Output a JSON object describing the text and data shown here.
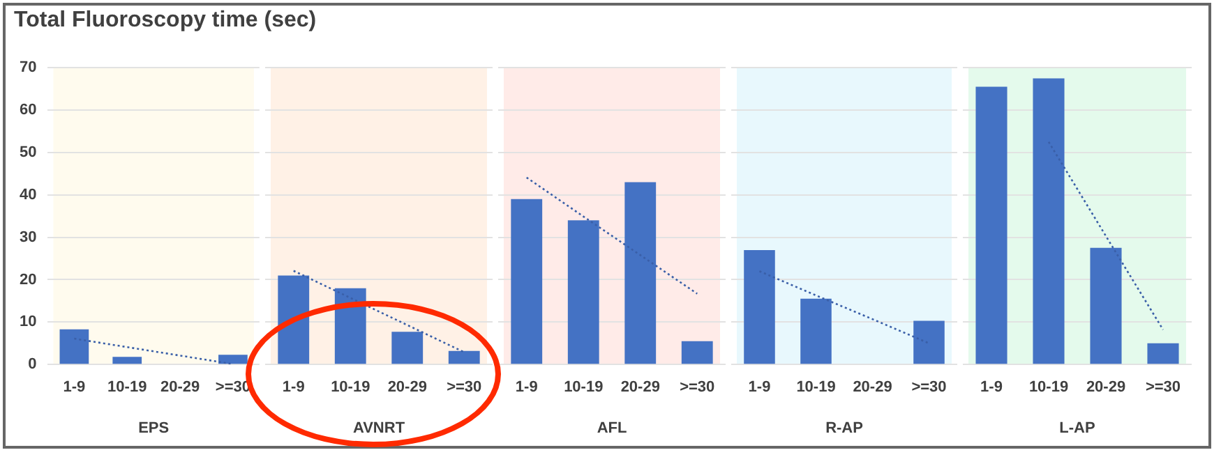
{
  "chart_data": [
    {
      "type": "bar",
      "title": "Total Fluoroscopy time (sec)",
      "xlabel": "EPS",
      "categories": [
        "1-9",
        "10-19",
        "20-29",
        ">=30"
      ],
      "ylim": [
        0,
        70
      ],
      "yticks": [
        0,
        10,
        20,
        30,
        40,
        50,
        60,
        70
      ],
      "grid": "y",
      "legend": false,
      "series": [
        {
          "color": "#4472c4",
          "values": [
            8.3,
            1.8,
            0,
            2.3
          ]
        },
        {
          "type": "line",
          "color": "#3a5fa8",
          "line_style": "dotted",
          "marker": "none",
          "values": [
            6.1,
            4.1,
            2.1,
            0.1
          ]
        }
      ]
    },
    {
      "type": "bar",
      "xlabel": "AVNRT",
      "categories": [
        "1-9",
        "10-19",
        "20-29",
        ">=30"
      ],
      "ylim": [
        0,
        70
      ],
      "yticks": [
        0,
        10,
        20,
        30,
        40,
        50,
        60,
        70
      ],
      "grid": "y",
      "legend": false,
      "tick_labels": "x",
      "series": [
        {
          "color": "#4472c4",
          "values": [
            21,
            18,
            7.7,
            3.2
          ]
        },
        {
          "type": "line",
          "color": "#3a5fa8",
          "line_style": "dotted",
          "marker": "none",
          "values": [
            22.1,
            15.7,
            9.3,
            2.9
          ]
        }
      ]
    },
    {
      "type": "bar",
      "xlabel": "AFL",
      "categories": [
        "1-9",
        "10-19",
        "20-29",
        ">=30"
      ],
      "ylim": [
        0,
        70
      ],
      "yticks": [
        0,
        10,
        20,
        30,
        40,
        50,
        60,
        70
      ],
      "grid": "y",
      "legend": false,
      "tick_labels": "x",
      "series": [
        {
          "color": "#4472c4",
          "values": [
            39,
            34,
            43,
            5.5
          ]
        },
        {
          "type": "line",
          "color": "#3a5fa8",
          "line_style": "dotted",
          "marker": "none",
          "values": [
            44.1,
            34.9,
            25.8,
            16.7
          ]
        }
      ]
    },
    {
      "type": "bar",
      "xlabel": "R-AP",
      "categories": [
        "1-9",
        "10-19",
        "20-29",
        ">=30"
      ],
      "ylim": [
        0,
        70
      ],
      "yticks": [
        0,
        10,
        20,
        30,
        40,
        50,
        60,
        70
      ],
      "grid": "y",
      "legend": false,
      "tick_labels": "x",
      "series": [
        {
          "color": "#4472c4",
          "values": [
            27,
            15.5,
            0,
            10.3
          ]
        },
        {
          "type": "line",
          "color": "#3a5fa8",
          "line_style": "dotted",
          "marker": "none",
          "values": [
            22,
            16.3,
            10.7,
            5
          ]
        }
      ]
    },
    {
      "type": "bar",
      "xlabel": "L-AP",
      "categories": [
        "1-9",
        "10-19",
        "20-29",
        ">=30"
      ],
      "ylim": [
        0,
        70
      ],
      "yticks": [
        0,
        10,
        20,
        30,
        40,
        50,
        60,
        70
      ],
      "grid": "y",
      "legend": false,
      "tick_labels": "x",
      "series": [
        {
          "color": "#4472c4",
          "values": [
            65.5,
            67.5,
            27.5,
            5
          ]
        },
        {
          "type": "line",
          "color": "#3a5fa8",
          "line_style": "dotted",
          "marker": "none",
          "values": [
            null,
            52.5,
            30.3,
            8.2
          ]
        }
      ]
    }
  ]
}
